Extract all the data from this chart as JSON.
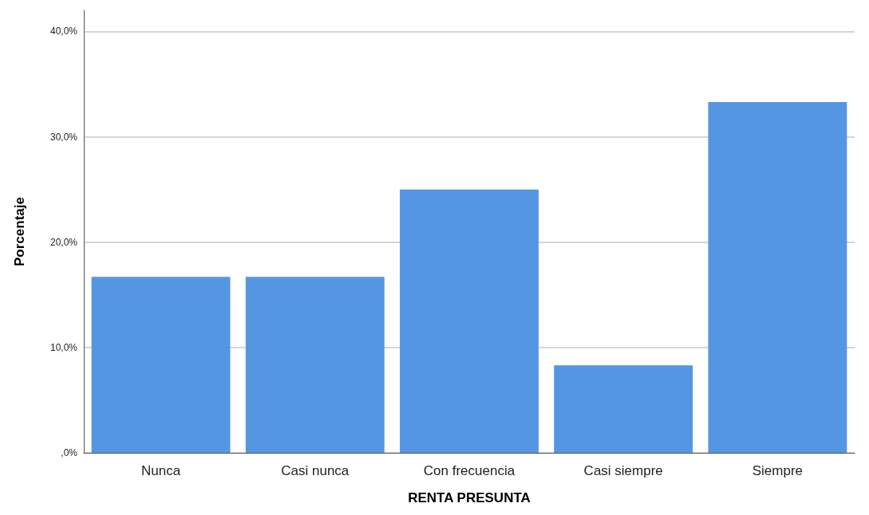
{
  "chart_data": {
    "type": "bar",
    "xlabel": "RENTA PRESUNTA",
    "ylabel": "Porcentaje",
    "categories": [
      "Nunca",
      "Casi nunca",
      "Con frecuencia",
      "Casi siempre",
      "Siempre"
    ],
    "values": [
      16.7,
      16.7,
      25.0,
      8.3,
      33.3
    ],
    "color": "#5596e3",
    "ylim": [
      0,
      42
    ],
    "yticks": [
      {
        "value": 0,
        "label": ",0%"
      },
      {
        "value": 10,
        "label": "10,0%"
      },
      {
        "value": 20,
        "label": "20,0%"
      },
      {
        "value": 30,
        "label": "30,0%"
      },
      {
        "value": 40,
        "label": "40,0%"
      }
    ],
    "grid": "y"
  }
}
